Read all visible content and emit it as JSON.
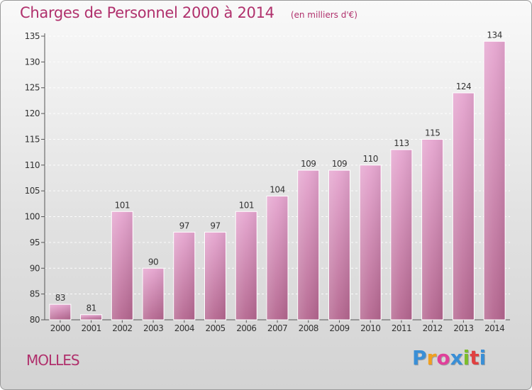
{
  "header": {
    "title": "Charges de Personnel 2000 à 2014",
    "subtitle": "(en milliers d'€)"
  },
  "footer": {
    "commune": "MOLLES",
    "logo_text": "Proxiti",
    "logo_colors": [
      "#3a8fd6",
      "#f0a020",
      "#e0409a",
      "#3a8fd6",
      "#7cbd2a",
      "#e04040",
      "#3a8fd6"
    ]
  },
  "chart_data": {
    "type": "bar",
    "title": "Charges de Personnel 2000 à 2014",
    "subtitle": "(en milliers d'€)",
    "xlabel": "",
    "ylabel": "",
    "categories": [
      "2000",
      "2001",
      "2002",
      "2003",
      "2004",
      "2005",
      "2006",
      "2007",
      "2008",
      "2009",
      "2010",
      "2011",
      "2012",
      "2013",
      "2014"
    ],
    "values": [
      83,
      81,
      101,
      90,
      97,
      97,
      101,
      104,
      109,
      109,
      110,
      113,
      115,
      124,
      134
    ],
    "value_labels": [
      "83",
      "81",
      "101",
      "90",
      "97",
      "97",
      "101",
      "104",
      "109",
      "109",
      "110",
      "113",
      "115",
      "124",
      "134"
    ],
    "ylim": [
      80,
      135
    ],
    "yticks": [
      80,
      85,
      90,
      95,
      100,
      105,
      110,
      115,
      120,
      125,
      130,
      135
    ],
    "ytick_labels": [
      "80",
      "85",
      "90",
      "95",
      "100",
      "105",
      "110",
      "115",
      "120",
      "125",
      "130",
      "135"
    ],
    "grid": true,
    "bar_color_top": "#e6a6d0",
    "bar_color_bottom": "#b4668f",
    "label_color": "#b0306c"
  }
}
